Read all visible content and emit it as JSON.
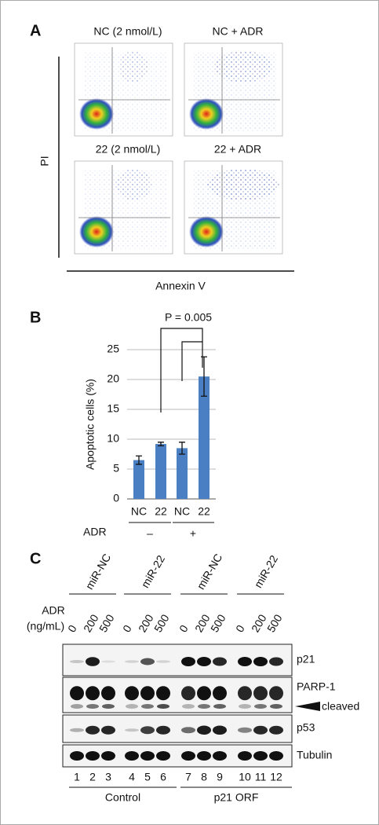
{
  "panel_a": {
    "label": "A",
    "plot_titles": [
      "NC (2 nmol/L)",
      "NC + ADR",
      "22 (2 nmol/L)",
      "22 + ADR"
    ],
    "ylabel": "PI",
    "xlabel": "Annexin V"
  },
  "chart_data": {
    "type": "bar",
    "panel_label": "B",
    "annotation": "P = 0.005",
    "ylabel": "Apoptotic cells (%)",
    "categories": [
      "NC",
      "22",
      "NC",
      "22"
    ],
    "series": [
      {
        "color": "#4a7fc4",
        "values": [
          6.5,
          9.2,
          8.5,
          20.5
        ],
        "errors": [
          0.7,
          0.3,
          1.0,
          3.3
        ]
      }
    ],
    "ylim": [
      0,
      25
    ],
    "yticks": [
      0,
      5,
      10,
      15,
      20,
      25
    ],
    "grid": true,
    "group_title": "ADR",
    "group_labels": [
      "–",
      "+"
    ]
  },
  "panel_c": {
    "label": "C",
    "groups": [
      "miR-NC",
      "miR-22",
      "miR-NC",
      "miR-22"
    ],
    "treatment": "ADR",
    "unit": "(ng/mL)",
    "doses": [
      "0",
      "200",
      "500",
      "0",
      "200",
      "500",
      "0",
      "200",
      "500",
      "0",
      "200",
      "500"
    ],
    "bands": [
      "p21",
      "PARP-1",
      "cleaved",
      "p53",
      "Tubulin"
    ],
    "lanes": [
      "1",
      "2",
      "3",
      "4",
      "5",
      "6",
      "7",
      "8",
      "9",
      "10",
      "11",
      "12"
    ],
    "conditions": [
      "Control",
      "p21 ORF"
    ]
  }
}
